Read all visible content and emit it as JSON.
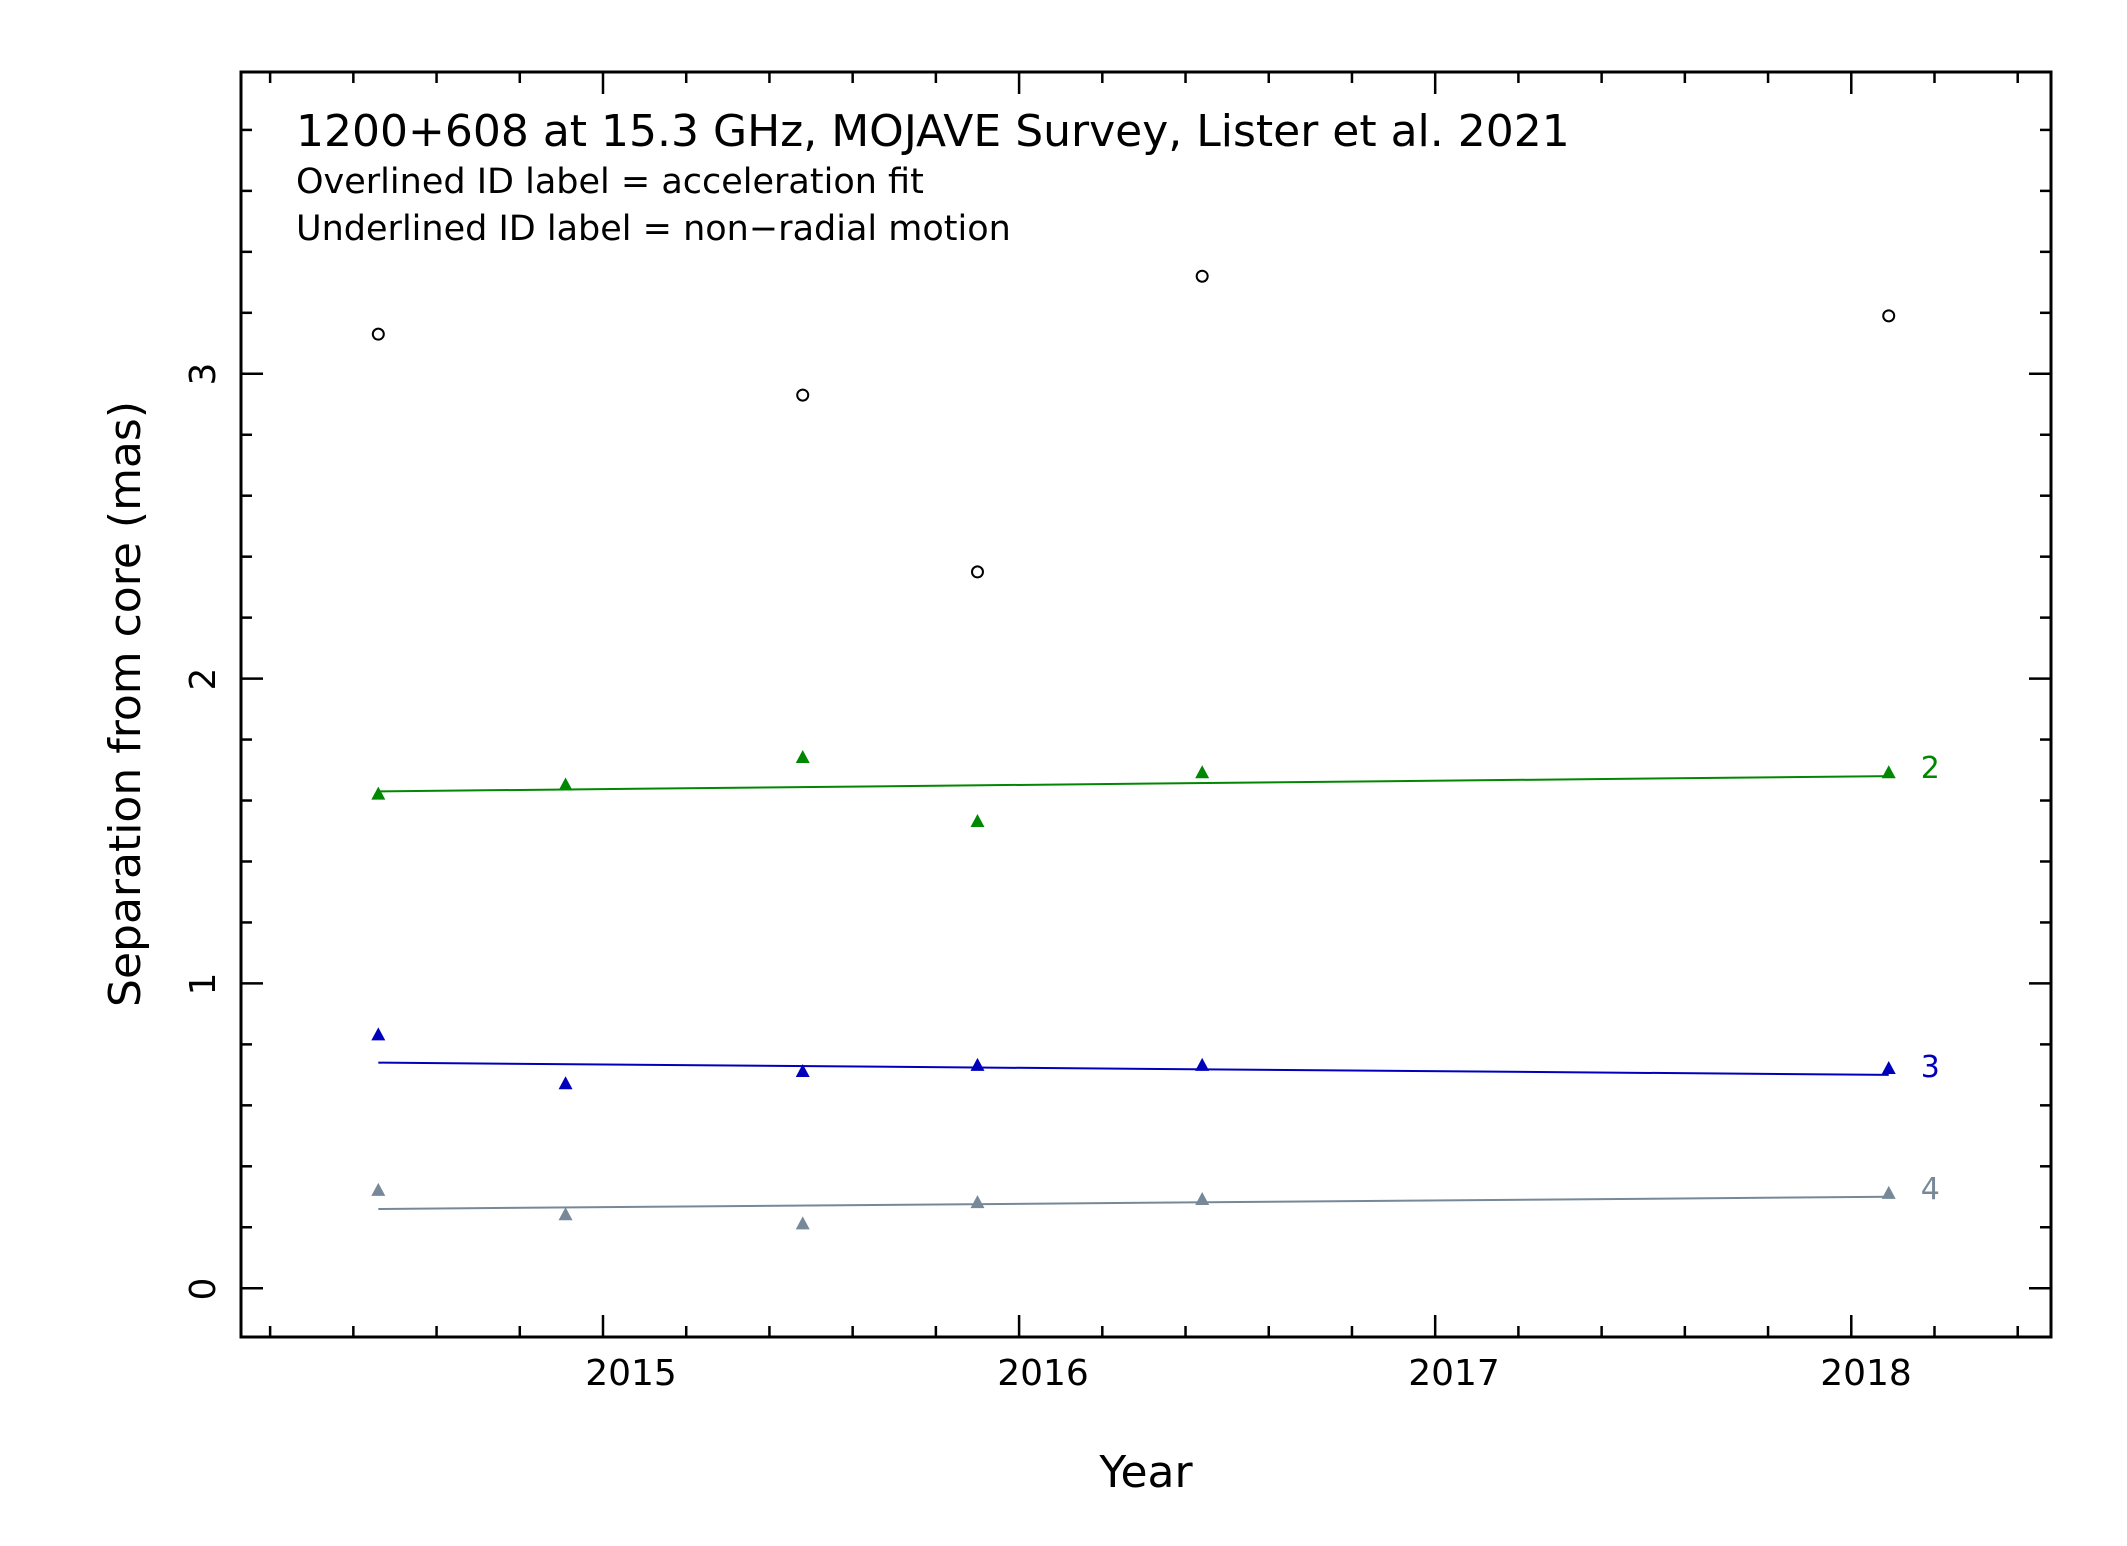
{
  "chart_data": {
    "type": "scatter",
    "title": "1200+608 at 15.3 GHz, MOJAVE Survey, Lister et al. 2021",
    "notes": [
      "Overlined ID label = acceleration fit",
      "Underlined ID label = non−radial motion"
    ],
    "xlabel": "Year",
    "ylabel": "Separation from core (mas)",
    "xlim": [
      2014.13,
      2018.48
    ],
    "ylim": [
      -0.16,
      3.99
    ],
    "x_ticks": [
      "2015",
      "2016",
      "2017",
      "2018"
    ],
    "y_ticks": [
      "0",
      "1",
      "2",
      "3"
    ],
    "series": [
      {
        "id": "unlabeled",
        "color": "#000000",
        "marker": "circle-open",
        "points": [
          [
            2014.46,
            3.13
          ],
          [
            2015.48,
            2.93
          ],
          [
            2015.9,
            2.35
          ],
          [
            2016.44,
            3.32
          ],
          [
            2018.09,
            3.19
          ]
        ],
        "fit": null
      },
      {
        "id": "2",
        "label": "2",
        "color": "#008800",
        "marker": "triangle",
        "points": [
          [
            2014.46,
            1.62
          ],
          [
            2014.91,
            1.65
          ],
          [
            2015.48,
            1.74
          ],
          [
            2015.9,
            1.53
          ],
          [
            2016.44,
            1.69
          ],
          [
            2018.09,
            1.69
          ]
        ],
        "fit": [
          [
            2014.46,
            1.63
          ],
          [
            2018.09,
            1.68
          ]
        ]
      },
      {
        "id": "3",
        "label": "3",
        "color": "#0000bb",
        "marker": "triangle",
        "points": [
          [
            2014.46,
            0.83
          ],
          [
            2014.91,
            0.67
          ],
          [
            2015.48,
            0.71
          ],
          [
            2015.9,
            0.73
          ],
          [
            2016.44,
            0.73
          ],
          [
            2018.09,
            0.72
          ]
        ],
        "fit": [
          [
            2014.46,
            0.74
          ],
          [
            2018.09,
            0.7
          ]
        ]
      },
      {
        "id": "4",
        "label": "4",
        "color": "#778899",
        "marker": "triangle",
        "points": [
          [
            2014.46,
            0.32
          ],
          [
            2014.91,
            0.24
          ],
          [
            2015.48,
            0.21
          ],
          [
            2015.9,
            0.28
          ],
          [
            2016.44,
            0.29
          ],
          [
            2018.09,
            0.31
          ]
        ],
        "fit": [
          [
            2014.46,
            0.26
          ],
          [
            2018.09,
            0.3
          ]
        ]
      }
    ]
  }
}
